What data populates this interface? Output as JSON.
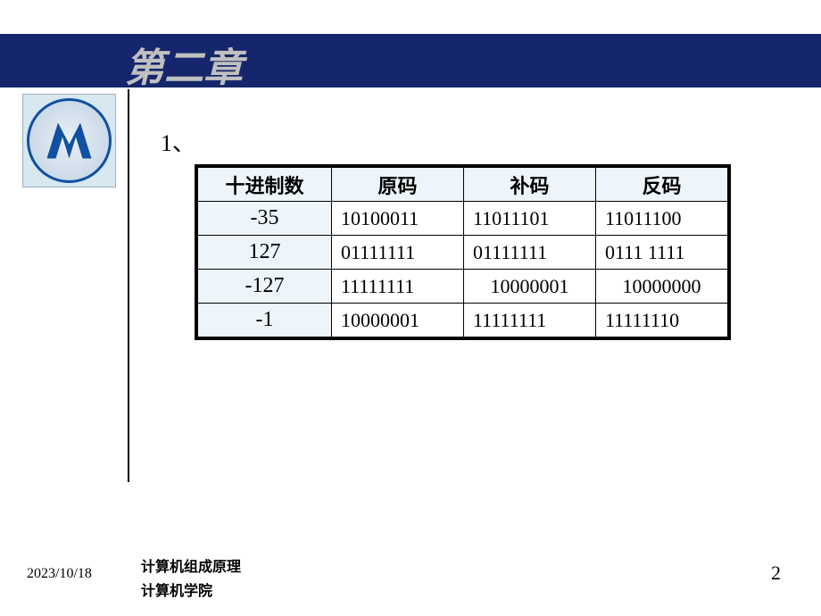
{
  "header": {
    "title": "第二章",
    "bar_color": "#16266c",
    "title_color": "#c0c0c0"
  },
  "section_number": "1、",
  "table": {
    "header_bg": "#eef5fa",
    "decimal_col_bg": "#eef5fa",
    "border_color": "#000000",
    "columns": [
      "十进制数",
      "原码",
      "补码",
      "反码"
    ],
    "rows": [
      {
        "decimal": "-35",
        "original": "10100011",
        "complement": "11011101",
        "inverse": "11011100"
      },
      {
        "decimal": "127",
        "original": "01111111",
        "complement": "01111111",
        "inverse": "0111 1111"
      },
      {
        "decimal": "-127",
        "original": "11111111",
        "complement": "10000001",
        "inverse": "10000000"
      },
      {
        "decimal": "-1",
        "original": "10000001",
        "complement": "11111111",
        "inverse": "11111110"
      }
    ]
  },
  "footer": {
    "date": "2023/10/18",
    "course": "计算机组成原理",
    "department": "计算机学院",
    "page": "2"
  }
}
